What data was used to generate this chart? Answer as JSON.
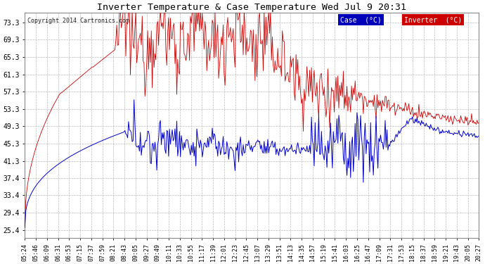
{
  "title": "Inverter Temperature & Case Temperature Wed Jul 9 20:31",
  "copyright": "Copyright 2014 Cartronics.com",
  "background_color": "#ffffff",
  "grid_color": "#bbbbbb",
  "yticks": [
    25.4,
    29.4,
    33.4,
    37.4,
    41.3,
    45.3,
    49.3,
    53.3,
    57.3,
    61.3,
    65.3,
    69.3,
    73.3
  ],
  "ylim": [
    23.5,
    75.5
  ],
  "xtick_labels": [
    "05:24",
    "05:46",
    "06:09",
    "06:31",
    "06:53",
    "07:15",
    "07:37",
    "07:59",
    "08:21",
    "08:43",
    "09:05",
    "09:27",
    "09:49",
    "10:11",
    "10:33",
    "10:55",
    "11:17",
    "11:39",
    "12:01",
    "12:23",
    "12:45",
    "13:07",
    "13:29",
    "13:51",
    "14:13",
    "14:35",
    "14:57",
    "15:19",
    "15:41",
    "16:03",
    "16:25",
    "16:47",
    "17:09",
    "17:31",
    "17:53",
    "18:15",
    "18:37",
    "18:59",
    "19:21",
    "19:43",
    "20:05",
    "20:27"
  ],
  "legend_case_label": "Case  (°C)",
  "legend_inverter_label": "Inverter  (°C)",
  "case_color": "#0000cc",
  "inverter_color": "#cc0000",
  "legend_case_bg": "#0000bb",
  "legend_inverter_bg": "#cc0000",
  "n_points": 500
}
